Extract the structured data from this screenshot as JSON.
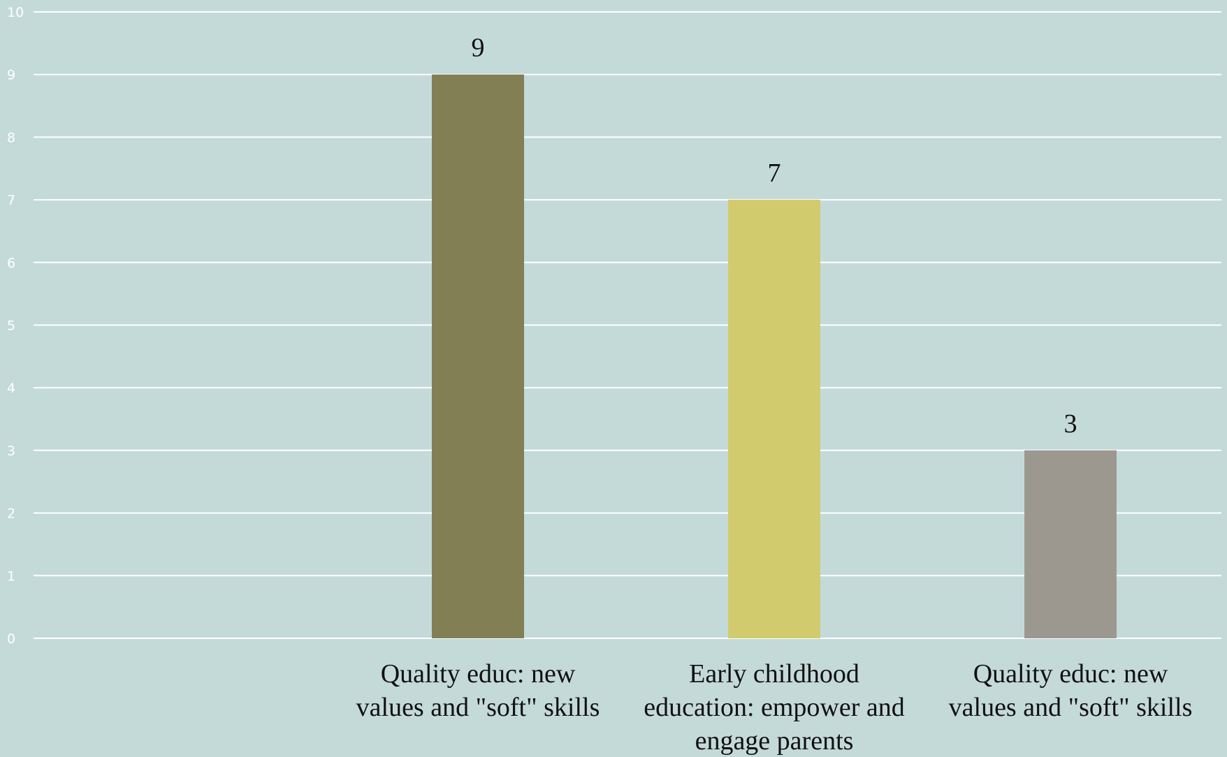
{
  "chart_data": {
    "type": "bar",
    "categories": [
      [
        "Quality educ: new",
        "values and \"soft\" skills"
      ],
      [
        "Early childhood",
        "education: empower and",
        "engage parents"
      ],
      [
        "Quality educ: new",
        "values and \"soft\" skills"
      ]
    ],
    "values": [
      9,
      7,
      3
    ],
    "colors": [
      "#837f55",
      "#d2cb6e",
      "#9c9890"
    ],
    "ylim": [
      0,
      10
    ],
    "yticks": [
      0,
      1,
      2,
      3,
      4,
      5,
      6,
      7,
      8,
      9,
      10
    ],
    "grid": true,
    "title": "",
    "xlabel": "",
    "ylabel": ""
  }
}
